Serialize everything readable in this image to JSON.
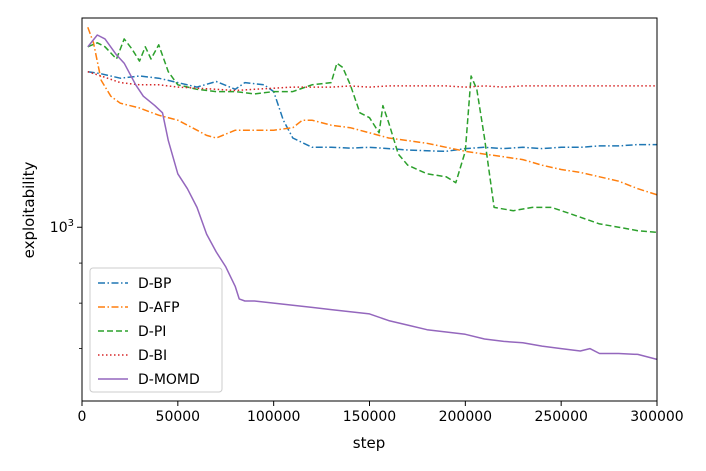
{
  "chart_data": {
    "type": "line",
    "title": "",
    "xlabel": "step",
    "ylabel": "exploitability",
    "xlim": [
      0,
      300000
    ],
    "ylim": [
      600,
      1850
    ],
    "yscale": "log",
    "grid": false,
    "legend_position": "lower-left",
    "x_ticks": [
      0,
      50000,
      100000,
      150000,
      200000,
      250000,
      300000
    ],
    "x_tick_labels": [
      "0",
      "50000",
      "100000",
      "150000",
      "200000",
      "250000",
      "300000"
    ],
    "y_ticks": [
      1000
    ],
    "y_tick_labels": [
      "10",
      "3"
    ],
    "series": [
      {
        "name": "D-BP",
        "color": "#1f77b4",
        "dash": "dashdot",
        "points": [
          [
            3000,
            1580
          ],
          [
            10000,
            1570
          ],
          [
            20000,
            1550
          ],
          [
            30000,
            1560
          ],
          [
            40000,
            1550
          ],
          [
            50000,
            1530
          ],
          [
            60000,
            1510
          ],
          [
            70000,
            1535
          ],
          [
            80000,
            1500
          ],
          [
            85000,
            1530
          ],
          [
            95000,
            1520
          ],
          [
            100000,
            1490
          ],
          [
            105000,
            1370
          ],
          [
            110000,
            1300
          ],
          [
            120000,
            1265
          ],
          [
            130000,
            1265
          ],
          [
            140000,
            1262
          ],
          [
            150000,
            1265
          ],
          [
            160000,
            1260
          ],
          [
            170000,
            1255
          ],
          [
            180000,
            1252
          ],
          [
            190000,
            1250
          ],
          [
            200000,
            1260
          ],
          [
            210000,
            1265
          ],
          [
            220000,
            1260
          ],
          [
            230000,
            1265
          ],
          [
            240000,
            1260
          ],
          [
            250000,
            1265
          ],
          [
            260000,
            1265
          ],
          [
            270000,
            1270
          ],
          [
            280000,
            1270
          ],
          [
            290000,
            1275
          ],
          [
            300000,
            1275
          ]
        ]
      },
      {
        "name": "D-AFP",
        "color": "#ff7f0e",
        "dash": "dashdot",
        "points": [
          [
            3000,
            1800
          ],
          [
            6000,
            1720
          ],
          [
            10000,
            1540
          ],
          [
            15000,
            1470
          ],
          [
            20000,
            1440
          ],
          [
            30000,
            1420
          ],
          [
            40000,
            1390
          ],
          [
            50000,
            1370
          ],
          [
            60000,
            1330
          ],
          [
            65000,
            1310
          ],
          [
            70000,
            1300
          ],
          [
            80000,
            1330
          ],
          [
            90000,
            1330
          ],
          [
            100000,
            1330
          ],
          [
            110000,
            1340
          ],
          [
            115000,
            1370
          ],
          [
            120000,
            1370
          ],
          [
            130000,
            1350
          ],
          [
            140000,
            1340
          ],
          [
            150000,
            1320
          ],
          [
            160000,
            1300
          ],
          [
            170000,
            1290
          ],
          [
            180000,
            1280
          ],
          [
            190000,
            1265
          ],
          [
            200000,
            1250
          ],
          [
            210000,
            1240
          ],
          [
            220000,
            1230
          ],
          [
            230000,
            1220
          ],
          [
            240000,
            1200
          ],
          [
            250000,
            1185
          ],
          [
            260000,
            1175
          ],
          [
            270000,
            1160
          ],
          [
            280000,
            1145
          ],
          [
            290000,
            1120
          ],
          [
            300000,
            1100
          ]
        ]
      },
      {
        "name": "D-PI",
        "color": "#2ca02c",
        "dash": "dashed",
        "points": [
          [
            3000,
            1700
          ],
          [
            8000,
            1720
          ],
          [
            12000,
            1700
          ],
          [
            18000,
            1640
          ],
          [
            22000,
            1740
          ],
          [
            26000,
            1690
          ],
          [
            30000,
            1630
          ],
          [
            33000,
            1700
          ],
          [
            36000,
            1640
          ],
          [
            40000,
            1710
          ],
          [
            45000,
            1580
          ],
          [
            50000,
            1520
          ],
          [
            60000,
            1500
          ],
          [
            70000,
            1490
          ],
          [
            80000,
            1490
          ],
          [
            90000,
            1480
          ],
          [
            100000,
            1490
          ],
          [
            110000,
            1490
          ],
          [
            120000,
            1520
          ],
          [
            130000,
            1530
          ],
          [
            133000,
            1620
          ],
          [
            136000,
            1600
          ],
          [
            140000,
            1520
          ],
          [
            145000,
            1400
          ],
          [
            150000,
            1380
          ],
          [
            155000,
            1320
          ],
          [
            157000,
            1430
          ],
          [
            160000,
            1360
          ],
          [
            165000,
            1240
          ],
          [
            170000,
            1200
          ],
          [
            180000,
            1170
          ],
          [
            190000,
            1160
          ],
          [
            195000,
            1140
          ],
          [
            200000,
            1250
          ],
          [
            203000,
            1560
          ],
          [
            206000,
            1500
          ],
          [
            210000,
            1300
          ],
          [
            215000,
            1060
          ],
          [
            225000,
            1050
          ],
          [
            235000,
            1060
          ],
          [
            245000,
            1060
          ],
          [
            255000,
            1040
          ],
          [
            260000,
            1030
          ],
          [
            270000,
            1010
          ],
          [
            280000,
            1000
          ],
          [
            290000,
            990
          ],
          [
            300000,
            985
          ]
        ]
      },
      {
        "name": "D-BI",
        "color": "#d62728",
        "dash": "dotted",
        "points": [
          [
            3000,
            1580
          ],
          [
            10000,
            1560
          ],
          [
            20000,
            1530
          ],
          [
            30000,
            1520
          ],
          [
            40000,
            1520
          ],
          [
            50000,
            1510
          ],
          [
            60000,
            1505
          ],
          [
            70000,
            1500
          ],
          [
            80000,
            1495
          ],
          [
            90000,
            1500
          ],
          [
            100000,
            1505
          ],
          [
            110000,
            1510
          ],
          [
            120000,
            1510
          ],
          [
            130000,
            1510
          ],
          [
            140000,
            1515
          ],
          [
            150000,
            1510
          ],
          [
            160000,
            1515
          ],
          [
            170000,
            1515
          ],
          [
            180000,
            1515
          ],
          [
            190000,
            1515
          ],
          [
            200000,
            1510
          ],
          [
            210000,
            1515
          ],
          [
            220000,
            1510
          ],
          [
            230000,
            1515
          ],
          [
            240000,
            1515
          ],
          [
            250000,
            1515
          ],
          [
            260000,
            1515
          ],
          [
            270000,
            1515
          ],
          [
            280000,
            1515
          ],
          [
            290000,
            1515
          ],
          [
            300000,
            1515
          ]
        ]
      },
      {
        "name": "D-MOMD",
        "color": "#9467bd",
        "dash": "solid",
        "points": [
          [
            3000,
            1700
          ],
          [
            8000,
            1760
          ],
          [
            12000,
            1740
          ],
          [
            18000,
            1660
          ],
          [
            22000,
            1620
          ],
          [
            28000,
            1520
          ],
          [
            32000,
            1470
          ],
          [
            38000,
            1430
          ],
          [
            42000,
            1400
          ],
          [
            45000,
            1290
          ],
          [
            50000,
            1170
          ],
          [
            55000,
            1120
          ],
          [
            60000,
            1060
          ],
          [
            65000,
            980
          ],
          [
            70000,
            930
          ],
          [
            75000,
            890
          ],
          [
            80000,
            840
          ],
          [
            82000,
            810
          ],
          [
            85000,
            805
          ],
          [
            90000,
            805
          ],
          [
            100000,
            800
          ],
          [
            110000,
            795
          ],
          [
            120000,
            790
          ],
          [
            130000,
            785
          ],
          [
            140000,
            780
          ],
          [
            150000,
            775
          ],
          [
            160000,
            760
          ],
          [
            170000,
            750
          ],
          [
            180000,
            740
          ],
          [
            190000,
            735
          ],
          [
            200000,
            730
          ],
          [
            210000,
            720
          ],
          [
            220000,
            715
          ],
          [
            230000,
            712
          ],
          [
            240000,
            705
          ],
          [
            250000,
            700
          ],
          [
            260000,
            695
          ],
          [
            265000,
            700
          ],
          [
            270000,
            690
          ],
          [
            280000,
            690
          ],
          [
            290000,
            688
          ],
          [
            300000,
            678
          ]
        ]
      }
    ]
  }
}
